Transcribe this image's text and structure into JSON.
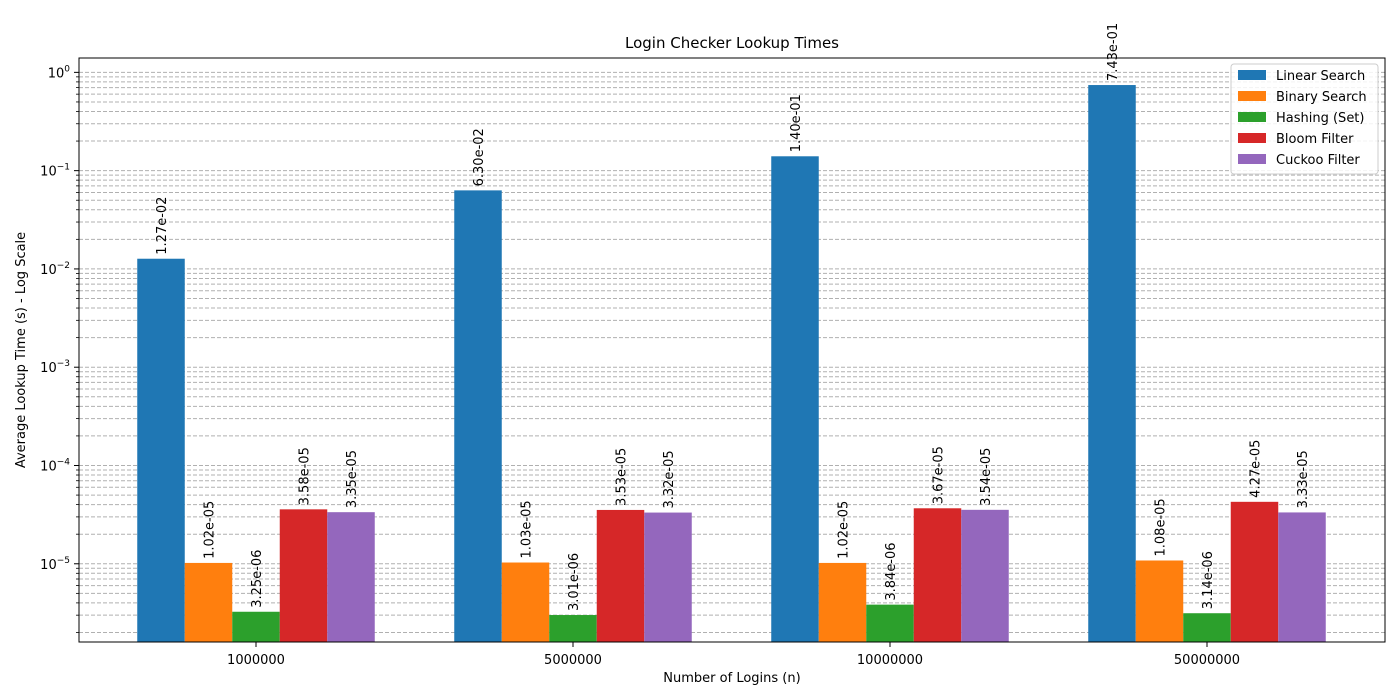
{
  "chart_data": {
    "type": "bar",
    "title": "Login Checker Lookup Times",
    "xlabel": "Number of Logins (n)",
    "ylabel": "Average Lookup Time (s) - Log Scale",
    "yscale": "log",
    "ylim": [
      1.6e-06,
      1.4
    ],
    "grid": "y major and minor, dashed",
    "legend_position": "top-right",
    "categories": [
      "1000000",
      "5000000",
      "10000000",
      "50000000"
    ],
    "y_ticks": [
      {
        "value": 1e-05,
        "base": "10",
        "exp": "−5"
      },
      {
        "value": 0.0001,
        "base": "10",
        "exp": "−4"
      },
      {
        "value": 0.001,
        "base": "10",
        "exp": "−3"
      },
      {
        "value": 0.01,
        "base": "10",
        "exp": "−2"
      },
      {
        "value": 0.1,
        "base": "10",
        "exp": "−1"
      },
      {
        "value": 1,
        "base": "10",
        "exp": "0"
      }
    ],
    "series": [
      {
        "name": "Linear Search",
        "color": "#1f77b4",
        "values": [
          0.0127,
          0.063,
          0.14,
          0.743
        ],
        "labels": [
          "1.27e-02",
          "6.30e-02",
          "1.40e-01",
          "7.43e-01"
        ]
      },
      {
        "name": "Binary Search",
        "color": "#ff7f0e",
        "values": [
          1.02e-05,
          1.03e-05,
          1.02e-05,
          1.08e-05
        ],
        "labels": [
          "1.02e-05",
          "1.03e-05",
          "1.02e-05",
          "1.08e-05"
        ]
      },
      {
        "name": "Hashing (Set)",
        "color": "#2ca02c",
        "values": [
          3.25e-06,
          3.01e-06,
          3.84e-06,
          3.14e-06
        ],
        "labels": [
          "3.25e-06",
          "3.01e-06",
          "3.84e-06",
          "3.14e-06"
        ]
      },
      {
        "name": "Bloom Filter",
        "color": "#d62728",
        "values": [
          3.58e-05,
          3.53e-05,
          3.67e-05,
          4.27e-05
        ],
        "labels": [
          "3.58e-05",
          "3.53e-05",
          "3.67e-05",
          "4.27e-05"
        ]
      },
      {
        "name": "Cuckoo Filter",
        "color": "#9467bd",
        "values": [
          3.35e-05,
          3.32e-05,
          3.54e-05,
          3.33e-05
        ],
        "labels": [
          "3.35e-05",
          "3.32e-05",
          "3.54e-05",
          "3.33e-05"
        ]
      }
    ]
  }
}
